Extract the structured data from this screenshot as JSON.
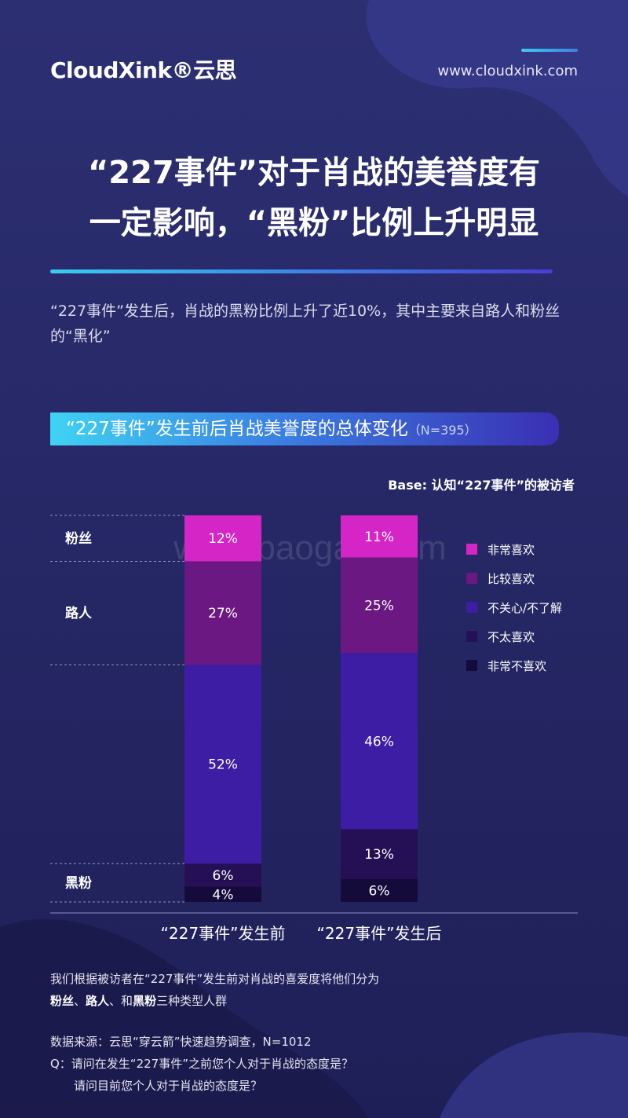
{
  "header": {
    "logo": "CloudXink®云思",
    "url": "www.cloudxink.com"
  },
  "title": {
    "line1": "“227事件”对于肖战的美誉度有",
    "line2": "一定影响，“黑粉”比例上升明显"
  },
  "intro": "“227事件”发生后，肖战的黑粉比例上升了近10%，其中主要来自路人和粉丝的“黑化”",
  "chart_title": "“227事件”发生前后肖战美誉度的总体变化",
  "chart_n": "（N=395）",
  "base": "Base: 认知“227事件”的被访者",
  "watermark": "www.baogao.com",
  "colors": {
    "very_like": "#d525c6",
    "like": "#6b1882",
    "neutral": "#3d1da3",
    "dislike": "#251055",
    "very_dislike": "#150b3b"
  },
  "chart_data": {
    "type": "bar",
    "stacked": true,
    "categories": [
      "“227事件”发生前",
      "“227事件”发生后"
    ],
    "series": [
      {
        "name": "非常喜欢",
        "values": [
          12,
          11
        ]
      },
      {
        "name": "比较喜欢",
        "values": [
          27,
          25
        ]
      },
      {
        "name": "不关心/不了解",
        "values": [
          52,
          46
        ]
      },
      {
        "name": "不太喜欢",
        "values": [
          6,
          13
        ]
      },
      {
        "name": "非常不喜欢",
        "values": [
          4,
          6
        ]
      }
    ],
    "value_labels": [
      [
        "12%",
        "27%",
        "52%",
        "6%",
        "4%"
      ],
      [
        "11%",
        "25%",
        "46%",
        "13%",
        "6%"
      ]
    ],
    "groups": [
      "粉丝",
      "路人",
      "黑粉"
    ],
    "legend_position": "right"
  },
  "note": {
    "text1": "我们根据被访者在“227事件”发生前对肖战的喜爱度将他们分为",
    "g1": "粉丝",
    "sep1": "、",
    "g2": "路人",
    "sep2": "、和",
    "g3": "黑粉",
    "text2": "三种类型人群"
  },
  "source": {
    "line1": "数据来源：云思“穿云箭”快速趋势调查，N=1012",
    "line2": "Q：请问在发生“227事件”之前您个人对于肖战的态度是？",
    "line3": "请问目前您个人对于肖战的态度是？"
  }
}
